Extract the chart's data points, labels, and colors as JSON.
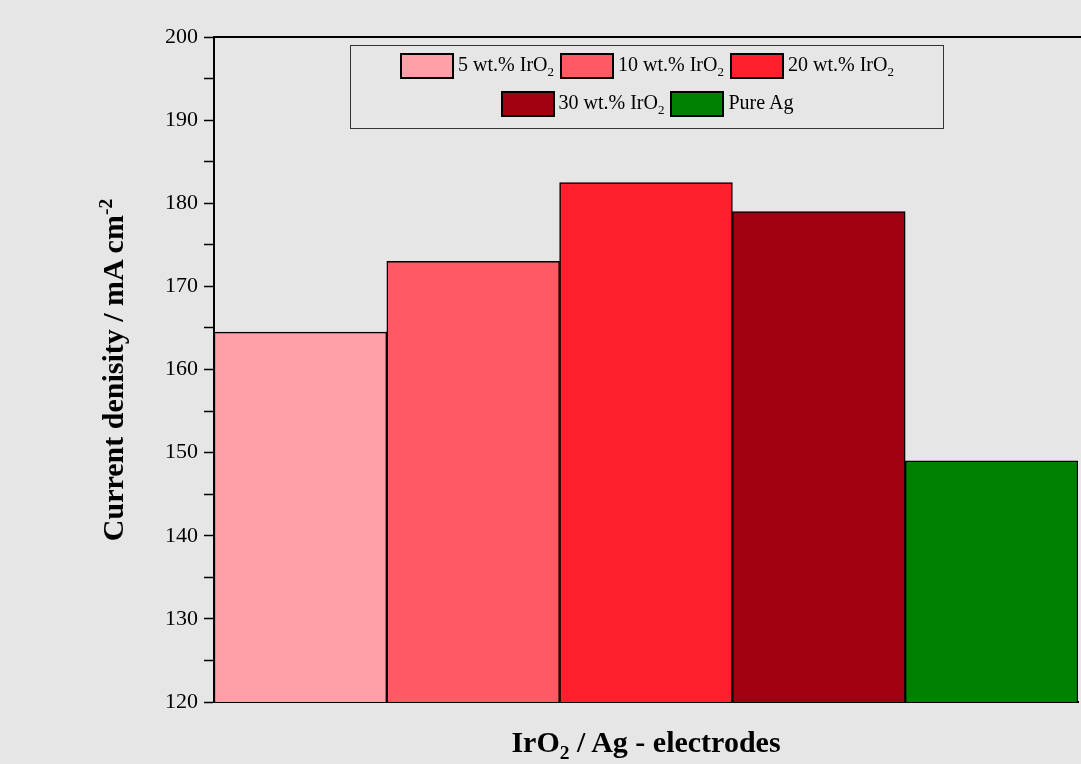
{
  "chart_data": {
    "type": "bar",
    "xlabel": "IrO$_{2}$ / Ag - electrodes",
    "ylabel": "Current denisity / mA cm$^{-2}$",
    "categories": [
      null
    ],
    "series": [
      {
        "name": "5 wt.% IrO$_{2}$",
        "color": "#ffa0a8",
        "values": [
          164.5
        ]
      },
      {
        "name": "10 wt.% IrO$_{2}$",
        "color": "#ff5a64",
        "values": [
          173
        ]
      },
      {
        "name": "20 wt.% IrO$_{2}$",
        "color": "#ff1f2d",
        "values": [
          182.5
        ]
      },
      {
        "name": "30 wt.% IrO$_{2}$",
        "color": "#a0000f",
        "values": [
          179
        ]
      },
      {
        "name": "Pure Ag",
        "color": "#008000",
        "values": [
          149
        ]
      }
    ],
    "ylim": [
      120,
      200
    ],
    "yticks": [
      120,
      {
        "value": 125,
        "label": null
      },
      130,
      {
        "value": 135,
        "label": null
      },
      140,
      {
        "value": 145,
        "label": null
      },
      150,
      {
        "value": 155,
        "label": null
      },
      160,
      {
        "value": 165,
        "label": null
      },
      170,
      {
        "value": 175,
        "label": null
      },
      180,
      {
        "value": 185,
        "label": null
      },
      190,
      {
        "value": 195,
        "label": null
      },
      200
    ],
    "grid": false,
    "legend": "top"
  }
}
